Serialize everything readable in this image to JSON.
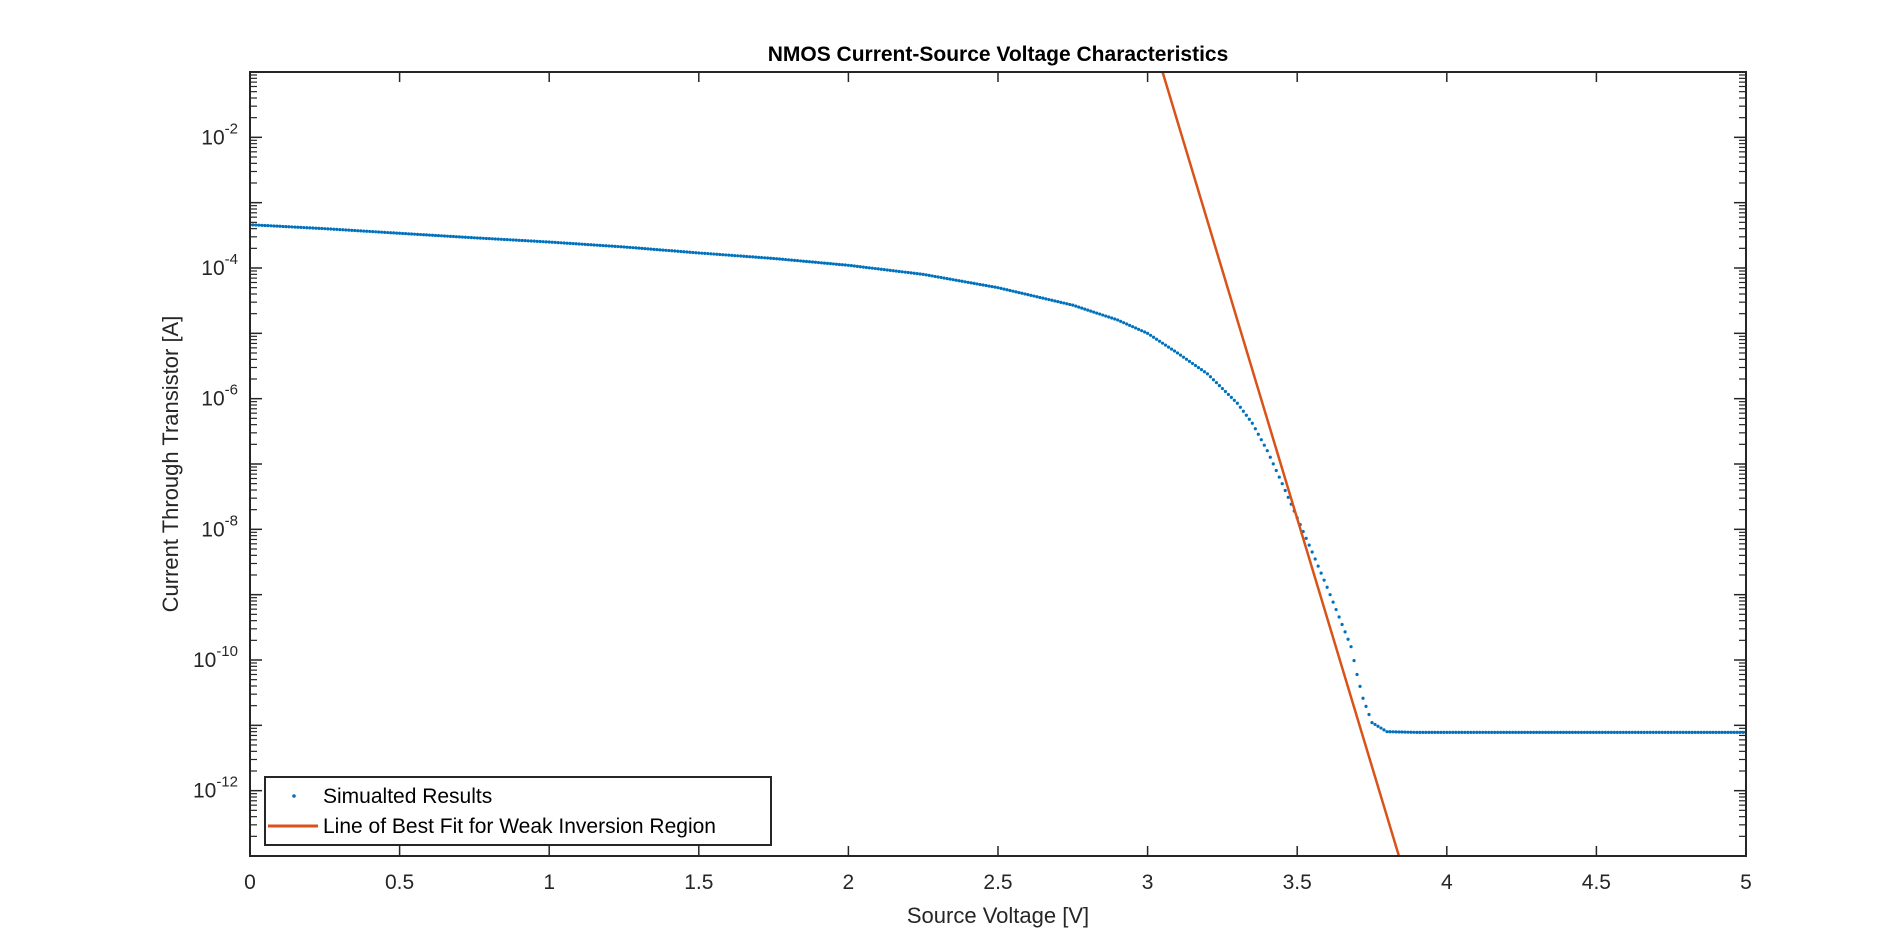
{
  "chart_data": {
    "type": "line",
    "title": "NMOS Current-Source Voltage Characteristics",
    "xlabel": "Source Voltage [V]",
    "ylabel": "Current Through Transistor [A]",
    "xlim": [
      0,
      5
    ],
    "ylim": [
      1e-13,
      0.1
    ],
    "yscale": "log",
    "grid": false,
    "legend_position": "bottom-left",
    "x_ticks": [
      "0",
      "0.5",
      "1",
      "1.5",
      "2",
      "2.5",
      "3",
      "3.5",
      "4",
      "4.5",
      "5"
    ],
    "y_ticks": [
      {
        "base": "10",
        "exp": "-12",
        "value": 1e-12
      },
      {
        "base": "10",
        "exp": "-10",
        "value": 1e-10
      },
      {
        "base": "10",
        "exp": "-8",
        "value": 1e-08
      },
      {
        "base": "10",
        "exp": "-6",
        "value": 1e-06
      },
      {
        "base": "10",
        "exp": "-4",
        "value": 0.0001
      },
      {
        "base": "10",
        "exp": "-2",
        "value": 0.01
      }
    ],
    "series": [
      {
        "name": "Simualted Results",
        "style": "dots",
        "color": "#0072BD",
        "x": [
          0,
          0.25,
          0.5,
          0.75,
          1.0,
          1.25,
          1.5,
          1.75,
          2.0,
          2.25,
          2.5,
          2.75,
          2.9,
          3.0,
          3.1,
          3.2,
          3.3,
          3.35,
          3.4,
          3.45,
          3.5,
          3.55,
          3.6,
          3.65,
          3.68,
          3.7,
          3.72,
          3.75,
          3.8,
          3.9,
          4.0,
          4.25,
          4.5,
          4.75,
          5.0
        ],
        "y": [
          0.00046,
          0.0004,
          0.00034,
          0.00029,
          0.00025,
          0.00021,
          0.00017,
          0.00014,
          0.00011,
          8e-05,
          5e-05,
          2.7e-05,
          1.6e-05,
          1e-05,
          5e-06,
          2.4e-06,
          8.5e-07,
          4.2e-07,
          1.6e-07,
          5e-08,
          1.5e-08,
          4.5e-09,
          1.3e-09,
          3.5e-10,
          1.6e-10,
          6e-11,
          2.6e-11,
          1.1e-11,
          8e-12,
          7.8e-12,
          7.8e-12,
          7.8e-12,
          7.8e-12,
          7.8e-12,
          7.8e-12
        ]
      },
      {
        "name": "Line of Best Fit for Weak Inversion Region",
        "style": "line",
        "color": "#D95319",
        "x": [
          3.05,
          3.84
        ],
        "y": [
          0.1,
          1e-13
        ]
      }
    ]
  }
}
